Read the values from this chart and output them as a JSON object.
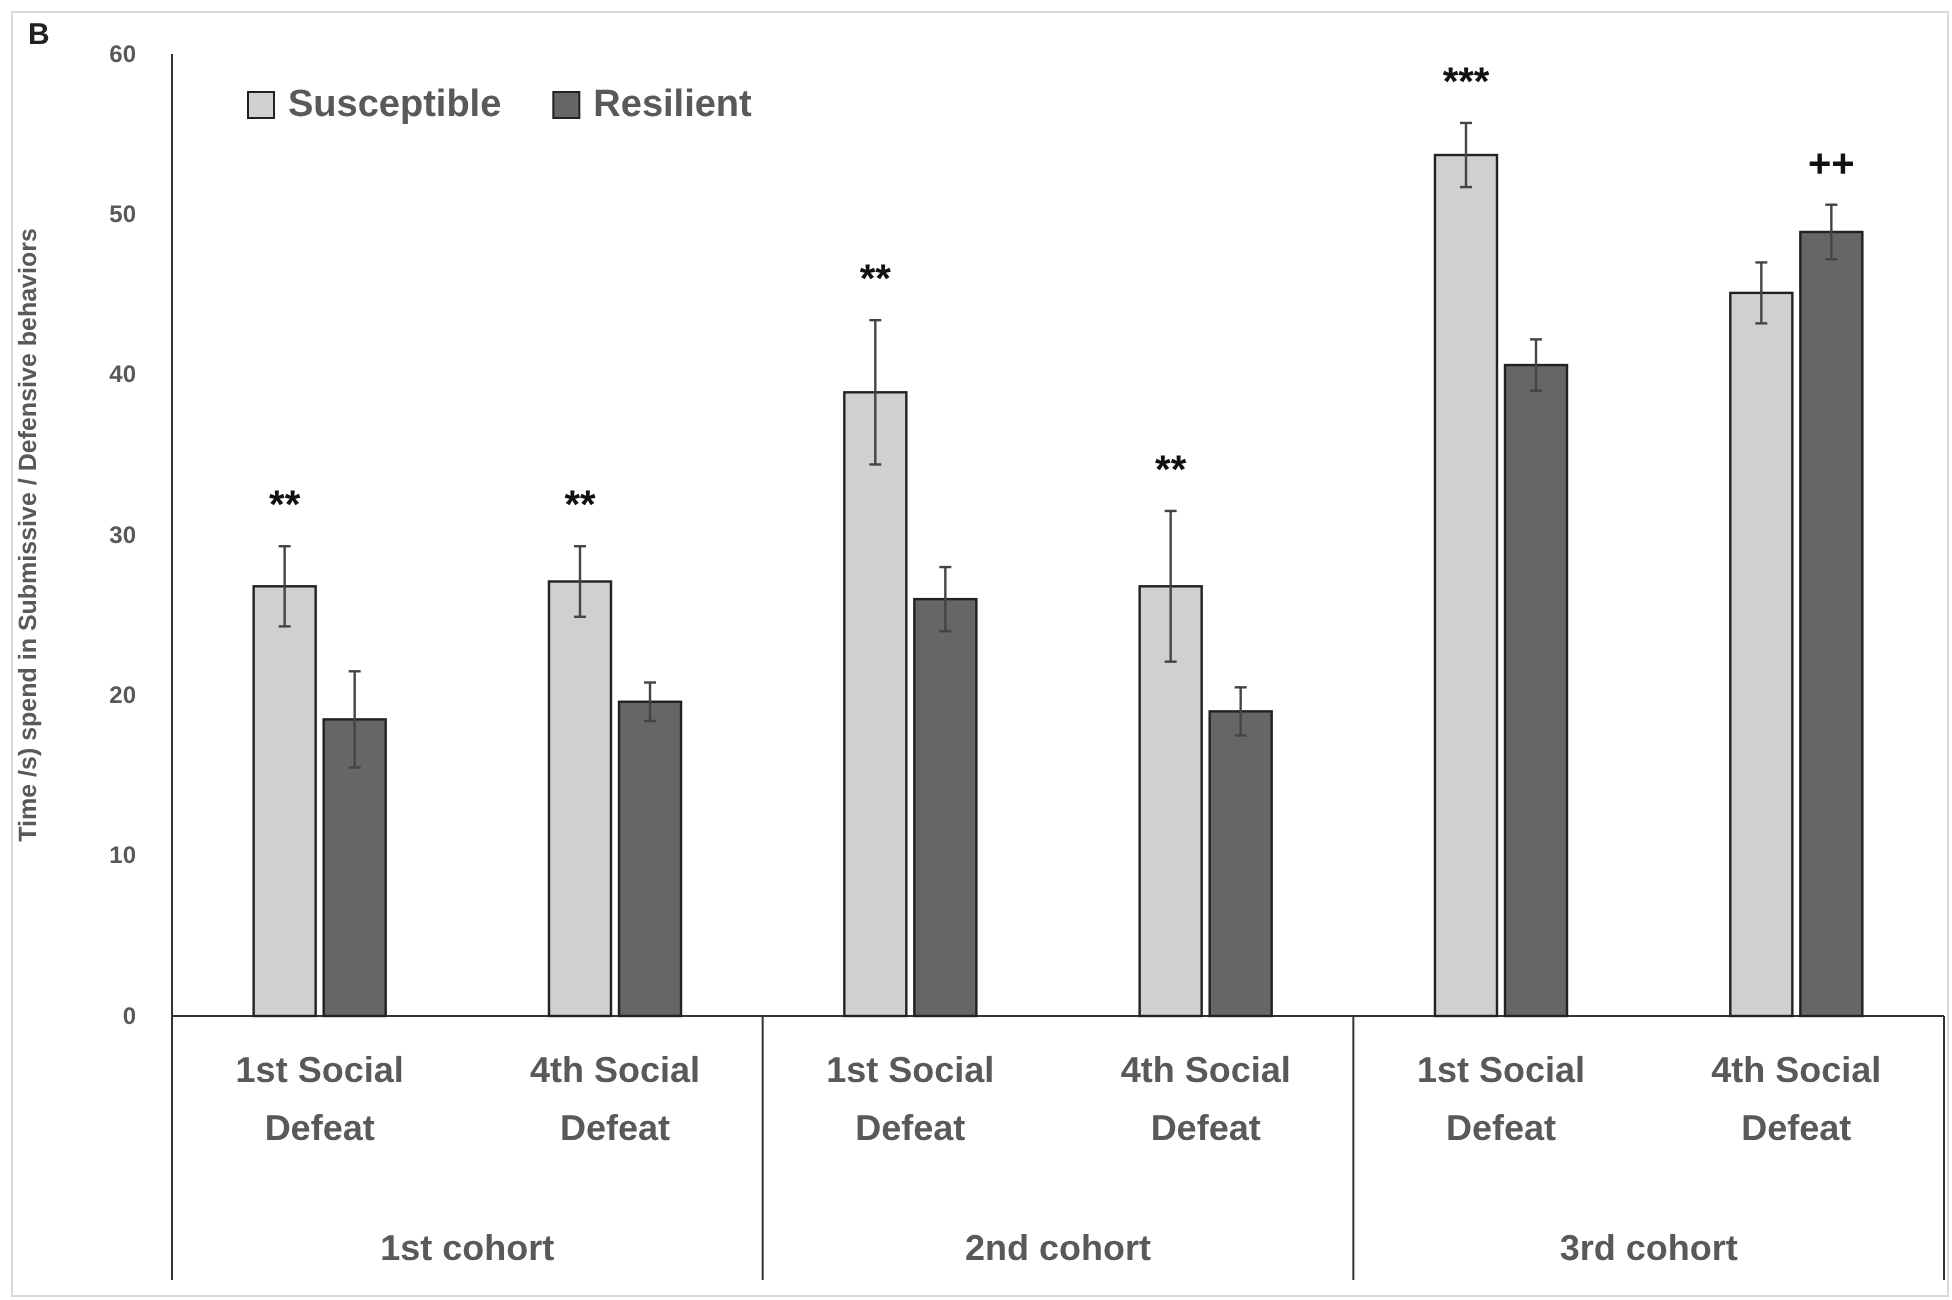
{
  "chart_data": {
    "type": "bar",
    "ylabel": "Time /s) spend in Submissive / Defensive behaviors",
    "categories": [
      "1st Social Defeat",
      "4th Social Defeat",
      "1st Social Defeat",
      "4th Social Defeat",
      "1st Social Defeat",
      "4th Social Defeat"
    ],
    "series": [
      {
        "name": "Susceptible",
        "color": "#d0d0d0",
        "values": [
          26.8,
          27.1,
          38.9,
          26.8,
          53.7,
          45.1
        ],
        "errors": [
          2.5,
          2.2,
          4.5,
          4.7,
          2.0,
          1.9
        ],
        "value_labels": [
          "**",
          "**",
          "**",
          "**",
          "***",
          null
        ]
      },
      {
        "name": "Resilient",
        "color": "#666666",
        "values": [
          18.5,
          19.6,
          26.0,
          19.0,
          40.6,
          48.9
        ],
        "errors": [
          3.0,
          1.2,
          2.0,
          1.5,
          1.6,
          1.7
        ],
        "value_labels": [
          null,
          null,
          null,
          null,
          null,
          "++"
        ]
      }
    ],
    "ylim": [
      0,
      60
    ],
    "yticks": [
      0,
      10,
      20,
      30,
      40,
      50,
      60
    ],
    "legend": "top left",
    "grid": false,
    "annotations": [
      "B",
      "1st cohort",
      "2nd cohort",
      "3rd cohort"
    ]
  }
}
